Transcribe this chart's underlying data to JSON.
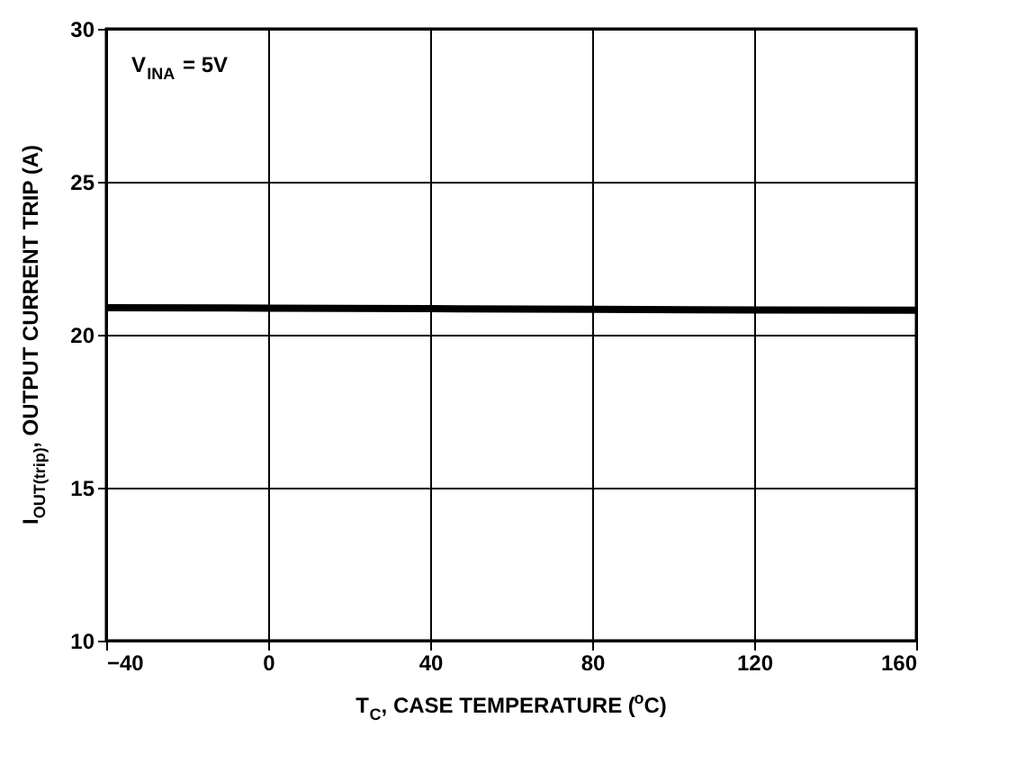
{
  "chart_data": {
    "type": "line",
    "xlabel": "T$_{C}$, CASE TEMPERATURE ($^{o}$C)",
    "ylabel": "I$_{OUT(trip)}$, OUTPUT CURRENT TRIP (A)",
    "annotations": [
      "V$_{INA}$ = 5V"
    ],
    "x": [
      -40,
      0,
      40,
      80,
      120,
      160
    ],
    "series": [
      {
        "color": "#000000",
        "values": [
          20.88,
          20.87,
          20.85,
          20.83,
          20.81,
          20.8
        ]
      }
    ],
    "xlim": [
      -40,
      160
    ],
    "xticks": [
      -40,
      0,
      40,
      80,
      120,
      160
    ],
    "ylim": [
      10,
      30
    ],
    "yticks": [
      10,
      15,
      20,
      25,
      30
    ],
    "grid": true,
    "marker": "none",
    "line_style": "solid"
  }
}
